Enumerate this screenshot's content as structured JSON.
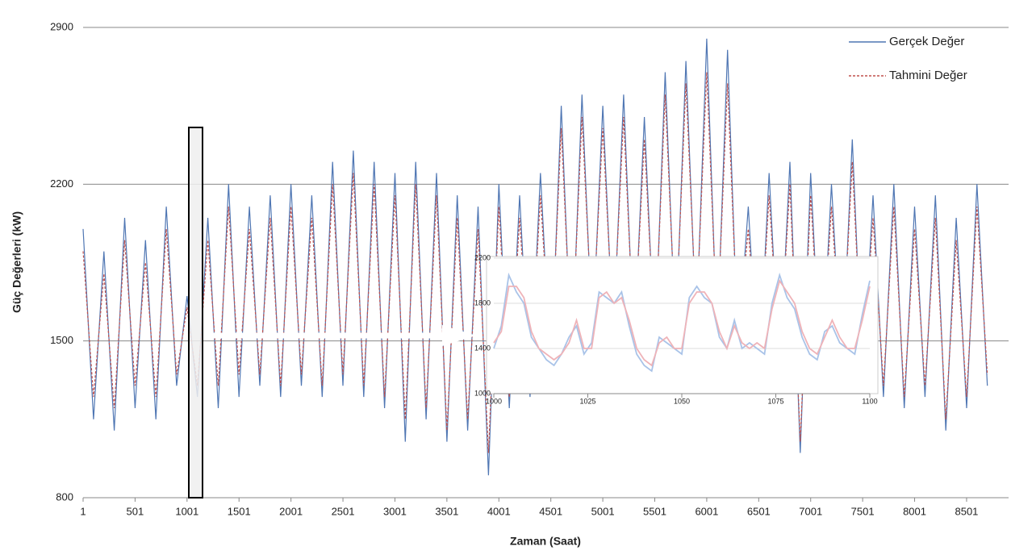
{
  "chart_data": [
    {
      "type": "line",
      "xlabel": "Zaman (Saat)",
      "ylabel": "Güç Değerleri (kW)",
      "x": [
        1,
        101,
        201,
        301,
        401,
        501,
        601,
        701,
        801,
        901,
        1001,
        1101,
        1201,
        1301,
        1401,
        1501,
        1601,
        1701,
        1801,
        1901,
        2001,
        2101,
        2201,
        2301,
        2401,
        2501,
        2601,
        2701,
        2801,
        2901,
        3001,
        3101,
        3201,
        3301,
        3401,
        3501,
        3601,
        3701,
        3801,
        3901,
        4001,
        4101,
        4201,
        4301,
        4401,
        4501,
        4601,
        4701,
        4801,
        4901,
        5001,
        5101,
        5201,
        5301,
        5401,
        5501,
        5601,
        5701,
        5801,
        5901,
        6001,
        6101,
        6201,
        6301,
        6401,
        6501,
        6601,
        6701,
        6801,
        6901,
        7001,
        7101,
        7201,
        7301,
        7401,
        7501,
        7601,
        7701,
        7801,
        7901,
        8001,
        8101,
        8201,
        8301,
        8401,
        8501,
        8601,
        8701
      ],
      "series": [
        {
          "name": "Gerçek Değer",
          "color": "#4f76b3",
          "dash": false,
          "values": [
            2000,
            1150,
            1900,
            1100,
            2050,
            1200,
            1950,
            1150,
            2100,
            1300,
            1700,
            1250,
            2050,
            1200,
            2200,
            1250,
            2100,
            1300,
            2150,
            1250,
            2200,
            1300,
            2150,
            1250,
            2300,
            1300,
            2350,
            1250,
            2300,
            1200,
            2250,
            1050,
            2300,
            1150,
            2250,
            1050,
            2150,
            1100,
            2100,
            900,
            2200,
            1200,
            2150,
            1250,
            2250,
            1350,
            2550,
            1400,
            2600,
            1500,
            2550,
            1500,
            2600,
            1450,
            2500,
            1450,
            2700,
            1500,
            2750,
            1550,
            2850,
            1500,
            2800,
            1450,
            2100,
            1300,
            2250,
            1350,
            2300,
            1000,
            2250,
            1300,
            2200,
            1350,
            2400,
            1300,
            2150,
            1250,
            2200,
            1200,
            2100,
            1250,
            2150,
            1100,
            2050,
            1200,
            2200,
            1300
          ]
        },
        {
          "name": "Tahmini Değer",
          "color": "#c0504d",
          "dash": true,
          "values": [
            1900,
            1250,
            1800,
            1200,
            1950,
            1300,
            1850,
            1250,
            2000,
            1350,
            1650,
            1300,
            1950,
            1300,
            2100,
            1350,
            2000,
            1350,
            2050,
            1300,
            2100,
            1350,
            2050,
            1300,
            2200,
            1350,
            2250,
            1300,
            2200,
            1250,
            2150,
            1150,
            2200,
            1200,
            2150,
            1100,
            2050,
            1150,
            2000,
            1000,
            2100,
            1250,
            2050,
            1300,
            2150,
            1400,
            2450,
            1450,
            2500,
            1550,
            2450,
            1550,
            2500,
            1500,
            2400,
            1500,
            2600,
            1550,
            2650,
            1600,
            2700,
            1550,
            2650,
            1500,
            2000,
            1350,
            2150,
            1400,
            2200,
            1050,
            2150,
            1350,
            2100,
            1400,
            2300,
            1350,
            2050,
            1300,
            2100,
            1250,
            2000,
            1300,
            2050,
            1150,
            1950,
            1250,
            2100,
            1350
          ]
        }
      ],
      "xlim": [
        1,
        8905
      ],
      "ylim": [
        800,
        2900
      ],
      "xticks": [
        1,
        501,
        1001,
        1501,
        2001,
        2501,
        3001,
        3501,
        4001,
        4501,
        5001,
        5501,
        6001,
        6501,
        7001,
        7501,
        8001,
        8501
      ],
      "yticks": [
        800,
        1500,
        2200,
        2900
      ],
      "grid": true,
      "legend": "upper right"
    },
    {
      "type": "line",
      "x": [
        1000,
        1002,
        1004,
        1006,
        1008,
        1010,
        1012,
        1014,
        1016,
        1018,
        1020,
        1022,
        1024,
        1026,
        1028,
        1030,
        1032,
        1034,
        1036,
        1038,
        1040,
        1042,
        1044,
        1046,
        1048,
        1050,
        1052,
        1054,
        1056,
        1058,
        1060,
        1062,
        1064,
        1066,
        1068,
        1070,
        1072,
        1074,
        1076,
        1078,
        1080,
        1082,
        1084,
        1086,
        1088,
        1090,
        1092,
        1094,
        1096,
        1098,
        1100
      ],
      "series": [
        {
          "color": "#a9c3e8",
          "values": [
            1400,
            1600,
            2050,
            1900,
            1800,
            1500,
            1400,
            1300,
            1250,
            1350,
            1500,
            1600,
            1350,
            1450,
            1900,
            1850,
            1800,
            1900,
            1600,
            1350,
            1250,
            1200,
            1500,
            1450,
            1400,
            1350,
            1850,
            1950,
            1850,
            1800,
            1500,
            1400,
            1650,
            1400,
            1450,
            1400,
            1350,
            1800,
            2050,
            1850,
            1750,
            1500,
            1350,
            1300,
            1550,
            1600,
            1450,
            1400,
            1350,
            1700,
            2000
          ]
        },
        {
          "color": "#efb3b8",
          "values": [
            1450,
            1550,
            1950,
            1950,
            1850,
            1550,
            1400,
            1350,
            1300,
            1350,
            1450,
            1650,
            1400,
            1400,
            1850,
            1900,
            1800,
            1850,
            1650,
            1400,
            1300,
            1250,
            1450,
            1500,
            1400,
            1400,
            1800,
            1900,
            1900,
            1800,
            1550,
            1400,
            1600,
            1450,
            1400,
            1450,
            1400,
            1750,
            2000,
            1900,
            1800,
            1550,
            1400,
            1350,
            1500,
            1650,
            1500,
            1400,
            1400,
            1650,
            1950
          ]
        }
      ],
      "xlim": [
        1000,
        1100
      ],
      "ylim": [
        1000,
        2200
      ],
      "xticks": [
        1000,
        1025,
        1050,
        1075,
        1100
      ],
      "yticks": [
        1000,
        1400,
        1800,
        2200
      ],
      "grid": true
    }
  ]
}
